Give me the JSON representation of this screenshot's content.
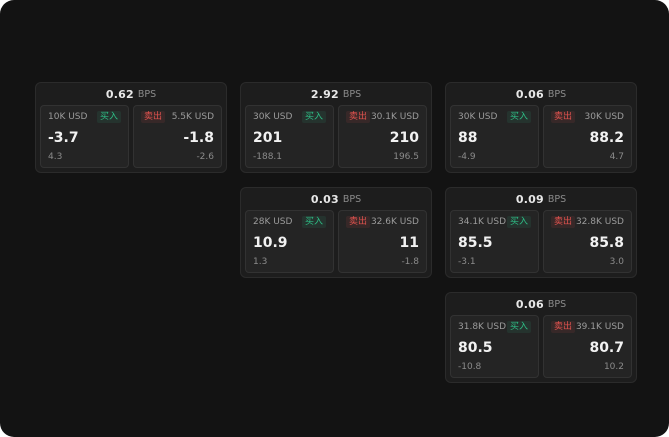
{
  "colors": {
    "background": "#131313",
    "card_background": "#1d1d1d",
    "panel_background": "#242424",
    "buy_green": "#2ebd85",
    "sell_red": "#e0524e"
  },
  "cards": [
    {
      "bps_value": "0.62",
      "bps_unit": "BPS",
      "buy": {
        "amount": "10K USD",
        "label": "买入",
        "value": "-3.7",
        "sub": "4.3"
      },
      "sell": {
        "label": "卖出",
        "amount": "5.5K USD",
        "value": "-1.8",
        "sub": "-2.6"
      }
    },
    {
      "bps_value": "2.92",
      "bps_unit": "BPS",
      "buy": {
        "amount": "30K USD",
        "label": "买入",
        "value": "201",
        "sub": "-188.1"
      },
      "sell": {
        "label": "卖出",
        "amount": "30.1K USD",
        "value": "210",
        "sub": "196.5"
      }
    },
    {
      "bps_value": "0.06",
      "bps_unit": "BPS",
      "buy": {
        "amount": "30K USD",
        "label": "买入",
        "value": "88",
        "sub": "-4.9"
      },
      "sell": {
        "label": "卖出",
        "amount": "30K USD",
        "value": "88.2",
        "sub": "4.7"
      }
    },
    {
      "bps_value": "0.03",
      "bps_unit": "BPS",
      "buy": {
        "amount": "28K USD",
        "label": "买入",
        "value": "10.9",
        "sub": "1.3"
      },
      "sell": {
        "label": "卖出",
        "amount": "32.6K USD",
        "value": "11",
        "sub": "-1.8"
      }
    },
    {
      "bps_value": "0.09",
      "bps_unit": "BPS",
      "buy": {
        "amount": "34.1K USD",
        "label": "买入",
        "value": "85.5",
        "sub": "-3.1"
      },
      "sell": {
        "label": "卖出",
        "amount": "32.8K USD",
        "value": "85.8",
        "sub": "3.0"
      }
    },
    {
      "bps_value": "0.06",
      "bps_unit": "BPS",
      "buy": {
        "amount": "31.8K USD",
        "label": "买入",
        "value": "80.5",
        "sub": "-10.8"
      },
      "sell": {
        "label": "卖出",
        "amount": "39.1K USD",
        "value": "80.7",
        "sub": "10.2"
      }
    }
  ]
}
